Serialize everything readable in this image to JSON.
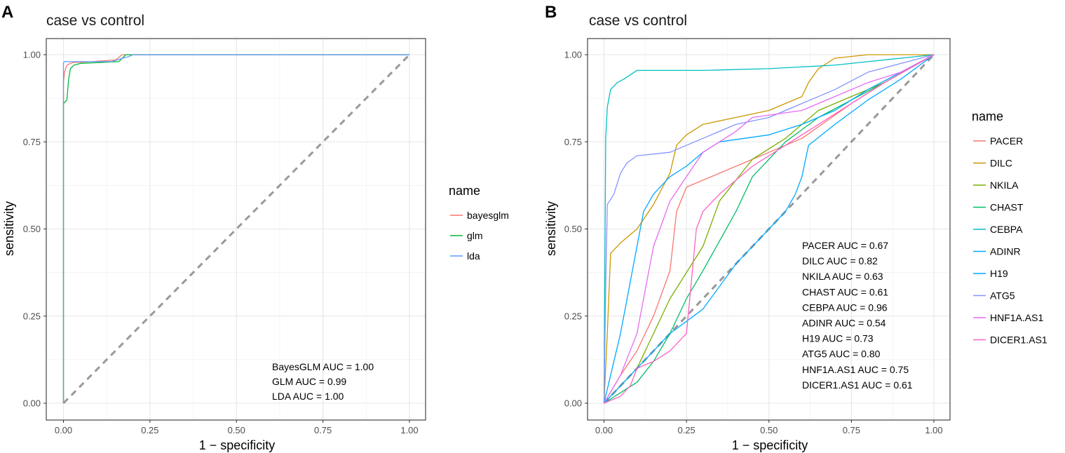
{
  "figure": {
    "panel_a_letter": "A",
    "panel_b_letter": "B"
  },
  "chart_data": [
    {
      "type": "line",
      "title": "case vs control",
      "xlabel": "1 − specificity",
      "ylabel": "sensitivity",
      "xlim": [
        0,
        1
      ],
      "ylim": [
        0,
        1
      ],
      "xticks": [
        "0.00",
        "0.25",
        "0.50",
        "0.75",
        "1.00"
      ],
      "yticks": [
        "0.00",
        "0.25",
        "0.50",
        "0.75",
        "1.00"
      ],
      "grid": true,
      "legend": {
        "title": "name",
        "position": "right"
      },
      "reference_line": "diagonal",
      "annotations": [
        "BayesGLM AUC = 1.00",
        "GLM AUC = 0.99",
        "LDA AUC = 1.00"
      ],
      "series": [
        {
          "name": "bayesglm",
          "color": "#F8766D",
          "x": [
            0,
            0,
            0.003,
            0.01,
            0.02,
            0.03,
            0.05,
            0.15,
            0.17,
            0.2,
            1
          ],
          "y": [
            0,
            0.92,
            0.95,
            0.97,
            0.975,
            0.978,
            0.978,
            0.985,
            1.0,
            1.0,
            1.0
          ]
        },
        {
          "name": "glm",
          "color": "#00BA38",
          "x": [
            0,
            0,
            0.005,
            0.01,
            0.015,
            0.02,
            0.03,
            0.05,
            0.16,
            0.17,
            0.18,
            0.21,
            1
          ],
          "y": [
            0,
            0.86,
            0.865,
            0.87,
            0.93,
            0.96,
            0.97,
            0.975,
            0.98,
            0.99,
            1.0,
            1.0,
            1.0
          ]
        },
        {
          "name": "lda",
          "color": "#619CFF",
          "x": [
            0,
            0,
            0.002,
            0.14,
            0.17,
            0.19,
            0.2,
            1
          ],
          "y": [
            0,
            0.975,
            0.98,
            0.98,
            0.99,
            0.995,
            1.0,
            1.0
          ]
        }
      ]
    },
    {
      "type": "line",
      "title": "case vs control",
      "xlabel": "1 − specificity",
      "ylabel": "sensitivity",
      "xlim": [
        0,
        1
      ],
      "ylim": [
        0,
        1
      ],
      "xticks": [
        "0.00",
        "0.25",
        "0.50",
        "0.75",
        "1.00"
      ],
      "yticks": [
        "0.00",
        "0.25",
        "0.50",
        "0.75",
        "1.00"
      ],
      "grid": true,
      "legend": {
        "title": "name",
        "position": "right"
      },
      "reference_line": "diagonal",
      "annotations": [
        "PACER AUC = 0.67",
        "DILC AUC = 0.82",
        "NKILA AUC = 0.63",
        "CHAST AUC = 0.61",
        "CEBPA AUC = 0.96",
        "ADINR AUC = 0.54",
        "H19 AUC = 0.73",
        "ATG5 AUC = 0.80",
        "HNF1A.AS1 AUC = 0.75",
        "DICER1.AS1 AUC = 0.61"
      ],
      "series": [
        {
          "name": "PACER",
          "color": "#F8766D",
          "x": [
            0,
            0.05,
            0.1,
            0.15,
            0.2,
            0.22,
            0.25,
            0.35,
            0.5,
            0.6,
            0.75,
            0.85,
            1
          ],
          "y": [
            0,
            0.08,
            0.15,
            0.25,
            0.38,
            0.55,
            0.62,
            0.66,
            0.72,
            0.76,
            0.86,
            0.92,
            1
          ]
        },
        {
          "name": "DILC",
          "color": "#CD9600",
          "x": [
            0,
            0.01,
            0.02,
            0.05,
            0.1,
            0.15,
            0.2,
            0.22,
            0.25,
            0.3,
            0.5,
            0.6,
            0.62,
            0.65,
            0.7,
            0.8,
            1
          ],
          "y": [
            0,
            0.2,
            0.43,
            0.46,
            0.5,
            0.57,
            0.66,
            0.74,
            0.77,
            0.8,
            0.84,
            0.88,
            0.92,
            0.96,
            0.99,
            1,
            1
          ]
        },
        {
          "name": "NKILA",
          "color": "#7CAE00",
          "x": [
            0,
            0.05,
            0.1,
            0.15,
            0.2,
            0.3,
            0.35,
            0.45,
            0.55,
            0.65,
            0.75,
            0.85,
            1
          ],
          "y": [
            0,
            0.05,
            0.1,
            0.2,
            0.3,
            0.45,
            0.58,
            0.7,
            0.76,
            0.84,
            0.88,
            0.92,
            1
          ]
        },
        {
          "name": "CHAST",
          "color": "#00BE67",
          "x": [
            0,
            0.05,
            0.1,
            0.15,
            0.2,
            0.25,
            0.3,
            0.4,
            0.45,
            0.55,
            0.65,
            0.75,
            0.85,
            1
          ],
          "y": [
            0,
            0.03,
            0.06,
            0.12,
            0.2,
            0.3,
            0.38,
            0.55,
            0.65,
            0.75,
            0.82,
            0.87,
            0.92,
            1
          ]
        },
        {
          "name": "CEBPA",
          "color": "#00BFC4",
          "x": [
            0,
            0.005,
            0.01,
            0.02,
            0.04,
            0.06,
            0.1,
            0.3,
            0.5,
            0.7,
            0.8,
            0.9,
            1
          ],
          "y": [
            0,
            0.76,
            0.85,
            0.9,
            0.92,
            0.93,
            0.955,
            0.955,
            0.96,
            0.97,
            0.98,
            0.99,
            1
          ]
        },
        {
          "name": "ADINR",
          "color": "#00A9FF",
          "x": [
            0,
            0.2,
            0.3,
            0.4,
            0.45,
            0.5,
            0.55,
            0.58,
            0.6,
            0.62,
            0.7,
            0.8,
            0.9,
            1
          ],
          "y": [
            0,
            0.2,
            0.27,
            0.4,
            0.45,
            0.5,
            0.55,
            0.6,
            0.65,
            0.74,
            0.8,
            0.87,
            0.93,
            1
          ]
        },
        {
          "name": "H19",
          "color": "#00A9FF",
          "x": [
            0,
            0.02,
            0.05,
            0.1,
            0.12,
            0.15,
            0.2,
            0.25,
            0.3,
            0.35,
            0.5,
            0.6,
            0.7,
            0.8,
            1
          ],
          "y": [
            0,
            0.08,
            0.2,
            0.45,
            0.55,
            0.6,
            0.65,
            0.68,
            0.72,
            0.75,
            0.77,
            0.8,
            0.84,
            0.9,
            1
          ]
        },
        {
          "name": "ATG5",
          "color": "#8494FF",
          "x": [
            0,
            0.005,
            0.01,
            0.03,
            0.05,
            0.07,
            0.1,
            0.2,
            0.3,
            0.4,
            0.5,
            0.7,
            0.8,
            1
          ],
          "y": [
            0,
            0.33,
            0.57,
            0.6,
            0.66,
            0.69,
            0.71,
            0.72,
            0.76,
            0.8,
            0.82,
            0.9,
            0.95,
            1
          ]
        },
        {
          "name": "HNF1A.AS1",
          "color": "#E76BF3",
          "x": [
            0,
            0.05,
            0.1,
            0.15,
            0.2,
            0.25,
            0.3,
            0.4,
            0.45,
            0.6,
            0.7,
            0.8,
            0.9,
            1
          ],
          "y": [
            0,
            0.08,
            0.2,
            0.45,
            0.58,
            0.65,
            0.72,
            0.78,
            0.82,
            0.84,
            0.88,
            0.92,
            0.95,
            1
          ]
        },
        {
          "name": "DICER1.AS1",
          "color": "#FF61C3",
          "x": [
            0,
            0.05,
            0.08,
            0.1,
            0.15,
            0.2,
            0.25,
            0.28,
            0.3,
            0.35,
            0.45,
            0.55,
            0.65,
            0.75,
            0.85,
            1
          ],
          "y": [
            0,
            0.02,
            0.05,
            0.1,
            0.12,
            0.15,
            0.2,
            0.5,
            0.55,
            0.6,
            0.68,
            0.74,
            0.8,
            0.86,
            0.92,
            1
          ]
        }
      ]
    }
  ]
}
